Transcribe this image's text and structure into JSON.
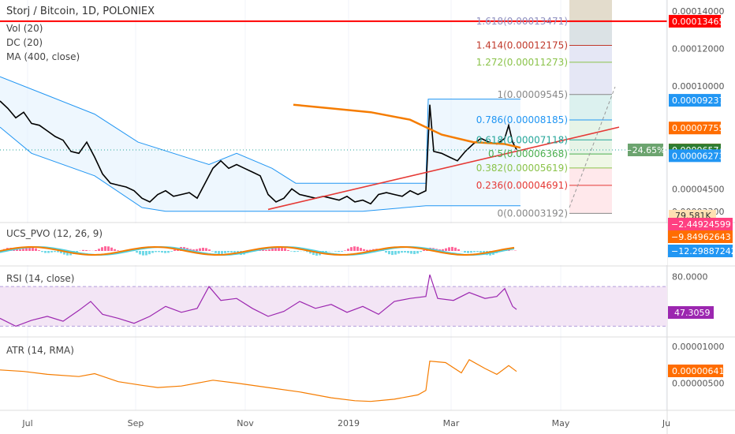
{
  "header": {
    "symbol_title": "Storj / Bitcoin, 1D, POLONIEX",
    "indicators": [
      "Vol (20)",
      "DC (20)",
      "MA (400, close)"
    ]
  },
  "colors": {
    "candle": "#000000",
    "ma400": "#f57c00",
    "dc_band": "#2196f3",
    "dc_fill": "#e3f2fd",
    "dc_mid": "#f57c00",
    "trendline": "#e53935",
    "hline": "#ff0000",
    "pvo_line": "#f57c00",
    "pvo_signal": "#4dd0e1",
    "pvo_hist_pos": "#ff4081",
    "pvo_hist_neg": "#4dd0e1",
    "rsi_line": "#9c27b0",
    "rsi_band": "#f3e5f5",
    "atr_line": "#f57c00",
    "grid": "#f0f3fa",
    "axis_text": "#555555"
  },
  "chart_data": [
    {
      "type": "candlestick",
      "title": "Storj / Bitcoin, 1D, POLONIEX",
      "ylim": [
        2.7e-05,
        0.000146
      ],
      "y_ticks": [
        "0.00014000",
        "0.00012000",
        "0.00010000",
        "0.00004500",
        "0.00003300"
      ],
      "x_ticks": [
        "Jul",
        "Sep",
        "Nov",
        "2019",
        "Mar",
        "May",
        "Ju"
      ],
      "close_path": [
        [
          0,
          9.2e-05
        ],
        [
          10,
          8.8e-05
        ],
        [
          20,
          8.3e-05
        ],
        [
          30,
          8.6e-05
        ],
        [
          40,
          8e-05
        ],
        [
          50,
          7.9e-05
        ],
        [
          60,
          7.6e-05
        ],
        [
          70,
          7.3e-05
        ],
        [
          80,
          7.1e-05
        ],
        [
          90,
          6.5e-05
        ],
        [
          100,
          6.4e-05
        ],
        [
          110,
          7e-05
        ],
        [
          120,
          6.2e-05
        ],
        [
          130,
          5.3e-05
        ],
        [
          140,
          4.8e-05
        ],
        [
          150,
          4.7e-05
        ],
        [
          160,
          4.6e-05
        ],
        [
          170,
          4.4e-05
        ],
        [
          180,
          4e-05
        ],
        [
          190,
          3.8e-05
        ],
        [
          200,
          4.2e-05
        ],
        [
          210,
          4.4e-05
        ],
        [
          220,
          4.1e-05
        ],
        [
          230,
          4.2e-05
        ],
        [
          240,
          4.3e-05
        ],
        [
          250,
          4e-05
        ],
        [
          260,
          4.8e-05
        ],
        [
          270,
          5.6e-05
        ],
        [
          280,
          6e-05
        ],
        [
          290,
          5.6e-05
        ],
        [
          300,
          5.8e-05
        ],
        [
          310,
          5.6e-05
        ],
        [
          320,
          5.4e-05
        ],
        [
          330,
          5.2e-05
        ],
        [
          340,
          4.2e-05
        ],
        [
          350,
          3.8e-05
        ],
        [
          360,
          4e-05
        ],
        [
          370,
          4.5e-05
        ],
        [
          380,
          4.2e-05
        ],
        [
          390,
          4.1e-05
        ],
        [
          400,
          4e-05
        ],
        [
          410,
          4.1e-05
        ],
        [
          420,
          4e-05
        ],
        [
          430,
          3.9e-05
        ],
        [
          440,
          4.1e-05
        ],
        [
          450,
          3.8e-05
        ],
        [
          460,
          3.9e-05
        ],
        [
          470,
          3.7e-05
        ],
        [
          480,
          4.2e-05
        ],
        [
          490,
          4.3e-05
        ],
        [
          500,
          4.2e-05
        ],
        [
          510,
          4.1e-05
        ],
        [
          520,
          4.4e-05
        ],
        [
          530,
          4.2e-05
        ],
        [
          540,
          4.4e-05
        ],
        [
          545,
          9e-05
        ],
        [
          550,
          6.5e-05
        ],
        [
          560,
          6.4e-05
        ],
        [
          570,
          6.2e-05
        ],
        [
          580,
          6e-05
        ],
        [
          590,
          6.5e-05
        ],
        [
          600,
          6.9e-05
        ],
        [
          610,
          7.2e-05
        ],
        [
          620,
          7e-05
        ],
        [
          630,
          6.9e-05
        ],
        [
          640,
          7.2e-05
        ],
        [
          645,
          7.9e-05
        ],
        [
          650,
          7e-05
        ],
        [
          655,
          6.6e-05
        ]
      ],
      "ma400_path": [
        [
          372,
          9e-05
        ],
        [
          420,
          8.8e-05
        ],
        [
          470,
          8.6e-05
        ],
        [
          520,
          8.2e-05
        ],
        [
          560,
          7.4e-05
        ],
        [
          600,
          7e-05
        ],
        [
          640,
          6.9e-05
        ],
        [
          660,
          6.7e-05
        ]
      ],
      "dc_upper": [
        [
          0,
          0.000105
        ],
        [
          60,
          9.5e-05
        ],
        [
          120,
          8.5e-05
        ],
        [
          175,
          7e-05
        ],
        [
          265,
          5.8e-05
        ],
        [
          300,
          6.4e-05
        ],
        [
          345,
          5.6e-05
        ],
        [
          375,
          4.8e-05
        ],
        [
          540,
          4.8e-05
        ],
        [
          543,
          9.3e-05
        ],
        [
          570,
          9.3e-05
        ],
        [
          597,
          9.3e-05
        ],
        [
          660,
          9.3e-05
        ]
      ],
      "dc_lower": [
        [
          0,
          7.8e-05
        ],
        [
          40,
          6.4e-05
        ],
        [
          120,
          5.2e-05
        ],
        [
          180,
          3.5e-05
        ],
        [
          210,
          3.3e-05
        ],
        [
          300,
          3.3e-05
        ],
        [
          345,
          3.3e-05
        ],
        [
          460,
          3.3e-05
        ],
        [
          540,
          3.6e-05
        ],
        [
          580,
          3.6e-05
        ],
        [
          597,
          3.6e-05
        ],
        [
          660,
          3.6e-05
        ]
      ],
      "trendline": [
        [
          340,
          3.4e-05
        ],
        [
          785,
          7.8e-05
        ]
      ],
      "horizontal_line": 0.00013465,
      "fib_levels": [
        {
          "label": "1.618(0.00013471)",
          "value": 0.00013471
        },
        {
          "label": "1.414(0.00012175)",
          "value": 0.00012175
        },
        {
          "label": "1.272(0.00011273)",
          "value": 0.00011273
        },
        {
          "label": "1(0.00009545)",
          "value": 9.545e-05
        },
        {
          "label": "0.786(0.00008185)",
          "value": 8.185e-05
        },
        {
          "label": "0.618(0.00007118)",
          "value": 7.118e-05
        },
        {
          "label": "0.5(0.00006368)",
          "value": 6.368e-05
        },
        {
          "label": "0.382(0.00005619)",
          "value": 5.619e-05
        },
        {
          "label": "0.236(0.00004691)",
          "value": 4.691e-05
        },
        {
          "label": "0(0.00003192)",
          "value": 3.192e-05
        }
      ],
      "fib_label_colors": [
        "#8f8fbf",
        "#c0392b",
        "#8bc34a",
        "#888888",
        "#2196f3",
        "#26a69a",
        "#4caf50",
        "#8bc34a",
        "#e53935",
        "#888888"
      ],
      "fib_band_colors": [
        "#c8b99a",
        "#b0bec5",
        "#c5cae9",
        "#c5cae9",
        "#b2dfdb",
        "#c8e6c9",
        "#c8e6c9",
        "#dcedc8",
        "#ffcdd2",
        "#ffcdd2"
      ],
      "price_labels": [
        {
          "text": "0.00013465",
          "value": 0.00013465,
          "bg": "#ff0000"
        },
        {
          "text": "0.00009237",
          "value": 9.237e-05,
          "bg": "#2196f3"
        },
        {
          "text": "0.00007755",
          "value": 7.755e-05,
          "bg": "#ff6d00"
        },
        {
          "text": "0.00006580",
          "value": 6.58e-05,
          "bg": "#ff6d00"
        },
        {
          "text": "0.00006574",
          "value": 6.574e-05,
          "bg": "#2e7d32"
        },
        {
          "text": "0.00006273",
          "value": 6.273e-05,
          "bg": "#2196f3"
        }
      ],
      "percent_badge": "−24.65%",
      "volume_label": "79.581K"
    },
    {
      "type": "line",
      "title": "UCS_PVO (12, 26, 9)",
      "values_labels": [
        "−2.44924599",
        "−9.84962643",
        "−12.29887242"
      ],
      "value_label_colors": [
        "#ff4081",
        "#ff6d00",
        "#2196f3"
      ]
    },
    {
      "type": "line",
      "title": "RSI (14, close)",
      "ylim": [
        20,
        90
      ],
      "y_ticks": [
        "80.0000"
      ],
      "band": [
        30,
        70
      ],
      "current_label": "47.3059",
      "series": [
        {
          "values": [
            [
              0,
              38
            ],
            [
              20,
              30
            ],
            [
              40,
              36
            ],
            [
              60,
              40
            ],
            [
              80,
              35
            ],
            [
              100,
              46
            ],
            [
              115,
              55
            ],
            [
              130,
              42
            ],
            [
              150,
              38
            ],
            [
              170,
              33
            ],
            [
              190,
              40
            ],
            [
              210,
              50
            ],
            [
              230,
              44
            ],
            [
              250,
              48
            ],
            [
              265,
              70
            ],
            [
              280,
              56
            ],
            [
              300,
              58
            ],
            [
              320,
              48
            ],
            [
              340,
              40
            ],
            [
              360,
              45
            ],
            [
              380,
              55
            ],
            [
              400,
              48
            ],
            [
              420,
              52
            ],
            [
              440,
              44
            ],
            [
              460,
              50
            ],
            [
              480,
              42
            ],
            [
              500,
              55
            ],
            [
              520,
              58
            ],
            [
              540,
              60
            ],
            [
              545,
              82
            ],
            [
              555,
              58
            ],
            [
              575,
              56
            ],
            [
              595,
              64
            ],
            [
              615,
              58
            ],
            [
              630,
              60
            ],
            [
              640,
              68
            ],
            [
              650,
              50
            ],
            [
              655,
              47
            ]
          ]
        }
      ]
    },
    {
      "type": "line",
      "title": "ATR (14, RMA)",
      "ylim": [
        1.5e-06,
        1.12e-05
      ],
      "y_ticks": [
        "0.00001000",
        "0.00000500"
      ],
      "current_label": "0.00000641",
      "series": [
        {
          "values": [
            [
              0,
              6.8e-06
            ],
            [
              30,
              6.6e-06
            ],
            [
              60,
              6.2e-06
            ],
            [
              100,
              5.9e-06
            ],
            [
              120,
              6.3e-06
            ],
            [
              150,
              5.2e-06
            ],
            [
              180,
              4.7e-06
            ],
            [
              200,
              4.4e-06
            ],
            [
              230,
              4.6e-06
            ],
            [
              260,
              5.2e-06
            ],
            [
              270,
              5.4e-06
            ],
            [
              300,
              5e-06
            ],
            [
              340,
              4.4e-06
            ],
            [
              380,
              3.8e-06
            ],
            [
              420,
              3e-06
            ],
            [
              450,
              2.6e-06
            ],
            [
              470,
              2.5e-06
            ],
            [
              500,
              2.8e-06
            ],
            [
              530,
              3.4e-06
            ],
            [
              540,
              4e-06
            ],
            [
              545,
              8e-06
            ],
            [
              565,
              7.8e-06
            ],
            [
              585,
              6.4e-06
            ],
            [
              595,
              8.2e-06
            ],
            [
              615,
              7e-06
            ],
            [
              630,
              6.2e-06
            ],
            [
              645,
              7.4e-06
            ],
            [
              655,
              6.6e-06
            ]
          ]
        }
      ]
    }
  ]
}
